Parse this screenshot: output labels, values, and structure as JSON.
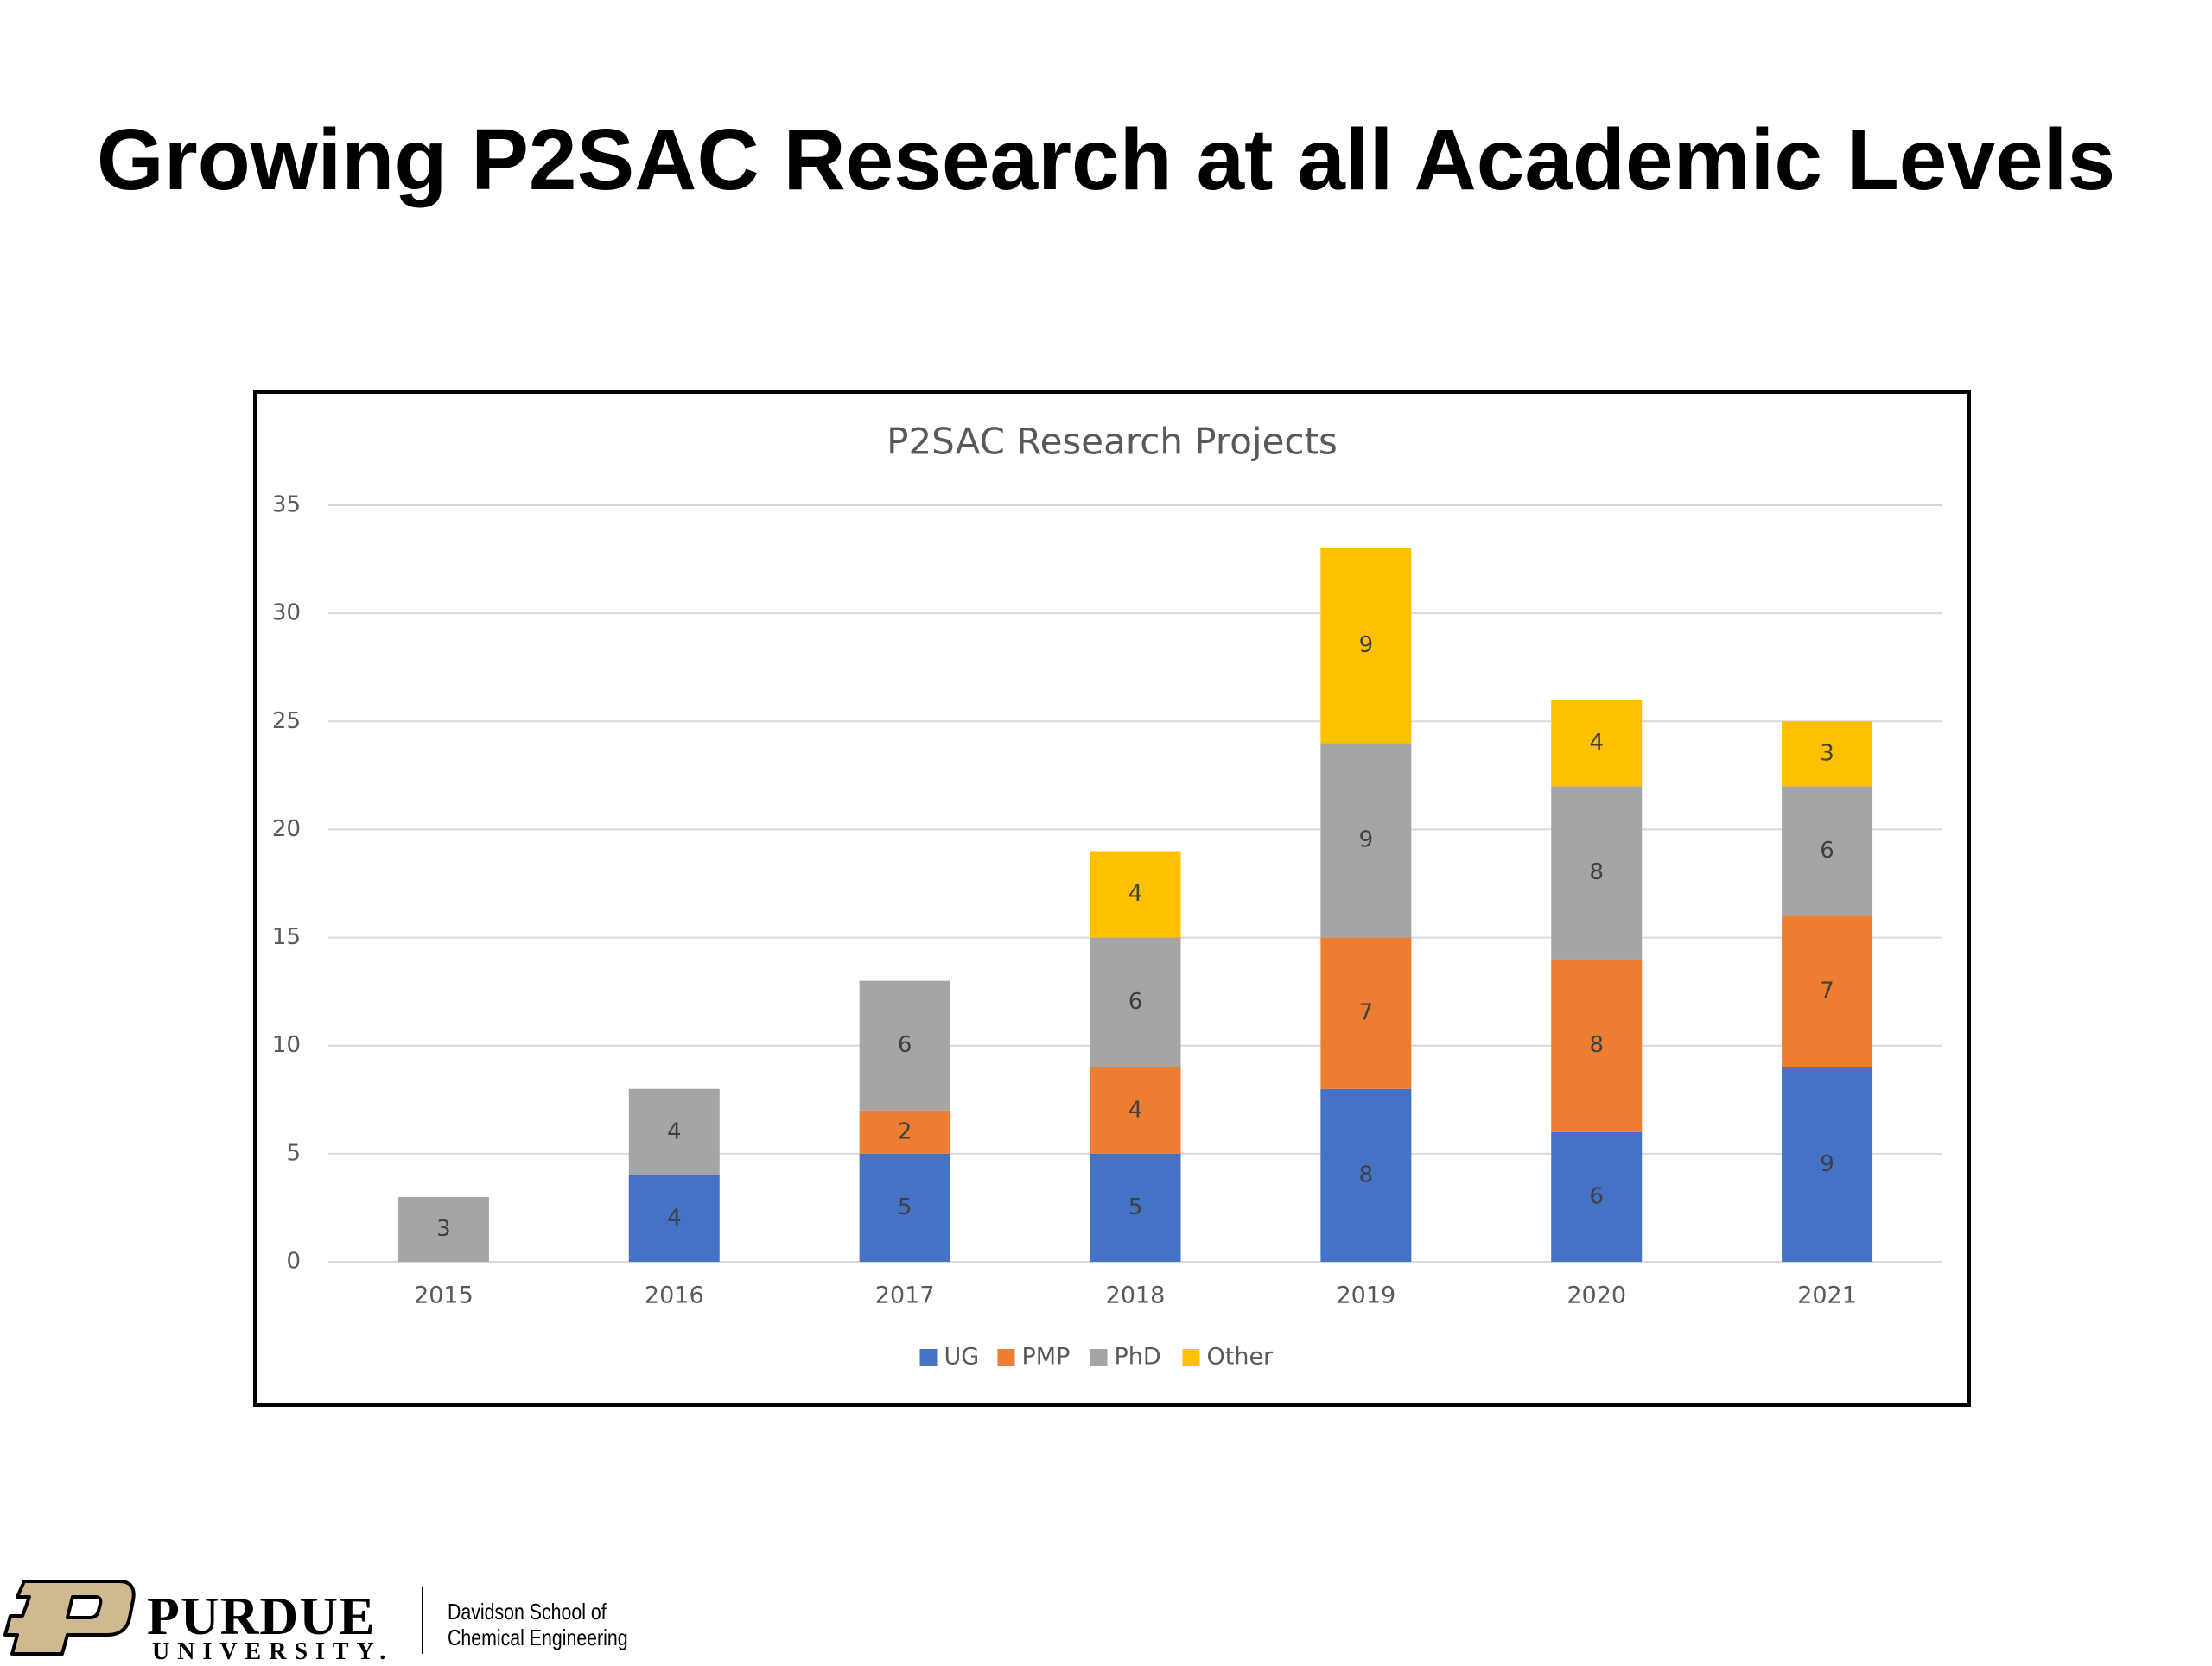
{
  "slide": {
    "title": "Growing P2SAC Research at all Academic Levels"
  },
  "footer": {
    "logo_text_main": "PURDUE",
    "logo_text_sub": "UNIVERSITY.",
    "department_line1": "Davidson School of",
    "department_line2": "Chemical Engineering"
  },
  "chart_data": {
    "type": "bar",
    "stacked": true,
    "title": "P2SAC Research Projects",
    "xlabel": "",
    "ylabel": "",
    "categories": [
      "2015",
      "2016",
      "2017",
      "2018",
      "2019",
      "2020",
      "2021"
    ],
    "series": [
      {
        "name": "UG",
        "color": "#4472C4",
        "values": [
          0,
          4,
          5,
          5,
          8,
          6,
          9
        ]
      },
      {
        "name": "PMP",
        "color": "#ED7D31",
        "values": [
          0,
          0,
          2,
          4,
          7,
          8,
          7
        ]
      },
      {
        "name": "PhD",
        "color": "#A5A5A5",
        "values": [
          3,
          4,
          6,
          6,
          9,
          8,
          6
        ]
      },
      {
        "name": "Other",
        "color": "#FFC000",
        "values": [
          0,
          0,
          0,
          4,
          9,
          4,
          3
        ]
      }
    ],
    "ylim": [
      0,
      35
    ],
    "yticks": [
      0,
      5,
      10,
      15,
      20,
      25,
      30,
      35
    ],
    "grid": true,
    "data_labels": true,
    "legend": "bottom"
  }
}
